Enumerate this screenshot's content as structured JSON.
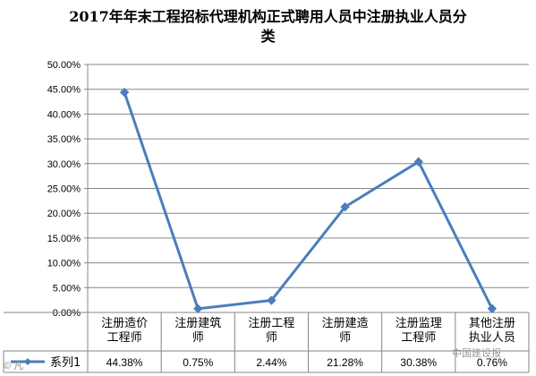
{
  "chart_data": {
    "type": "line",
    "title": "2017年年末工程招标代理机构正式聘用人员中注册执业人员分类",
    "title_lines": [
      "2017年年末工程招标代理机构正式聘用人员中注册执业人员分",
      "类"
    ],
    "categories": [
      [
        "注册造价",
        "工程师"
      ],
      [
        "注册建筑",
        "师"
      ],
      [
        "注册工程",
        "师"
      ],
      [
        "注册建造",
        "师"
      ],
      [
        "注册监理",
        "工程师"
      ],
      [
        "其他注册",
        "执业人员"
      ]
    ],
    "series": [
      {
        "name": "系列1",
        "values": [
          44.38,
          0.75,
          2.44,
          21.28,
          30.38,
          0.76
        ],
        "labels": [
          "44.38%",
          "0.75%",
          "2.44%",
          "21.28%",
          "30.38%",
          "0.76%"
        ],
        "color": "#4a7ebb"
      }
    ],
    "yticks": [
      "0.00%",
      "5.00%",
      "10.00%",
      "15.00%",
      "20.00%",
      "25.00%",
      "30.00%",
      "35.00%",
      "40.00%",
      "45.00%",
      "50.00%"
    ],
    "ylim": [
      0,
      50
    ],
    "grid": true,
    "legend": "data-table-bottom",
    "data_table": true
  },
  "watermark": {
    "left": "© 凡",
    "right": "中国建设报"
  },
  "colors": {
    "line": "#4a7ebb",
    "grid": "#868686",
    "axis": "#868686"
  }
}
